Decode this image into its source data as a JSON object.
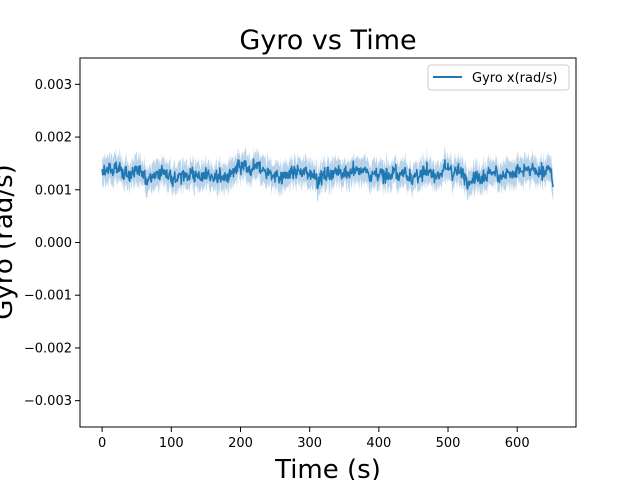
{
  "chart_data": {
    "type": "line",
    "title": "Gyro vs Time",
    "xlabel": "Time (s)",
    "ylabel": "Gyro (rad/s)",
    "xlim": [
      -32,
      685
    ],
    "ylim": [
      -0.0035,
      0.0035
    ],
    "xticks": [
      0,
      100,
      200,
      300,
      400,
      500,
      600
    ],
    "xtick_labels": [
      "0",
      "100",
      "200",
      "300",
      "400",
      "500",
      "600"
    ],
    "yticks": [
      -0.003,
      -0.002,
      -0.001,
      0.0,
      0.001,
      0.002,
      0.003
    ],
    "ytick_labels": [
      "−0.003",
      "−0.002",
      "−0.001",
      "0.000",
      "0.001",
      "0.002",
      "0.003"
    ],
    "grid": false,
    "legend_position": "top-right",
    "series": [
      {
        "name": "Gyro x(rad/s)",
        "color": "#1f77b4",
        "band_color": "#a6c8e4",
        "x_start": 0,
        "x_end": 652,
        "mean": 0.00132,
        "noise_amplitude": 0.00012,
        "band_halfwidth": 0.00022,
        "end_value": 0.00105
      }
    ]
  }
}
